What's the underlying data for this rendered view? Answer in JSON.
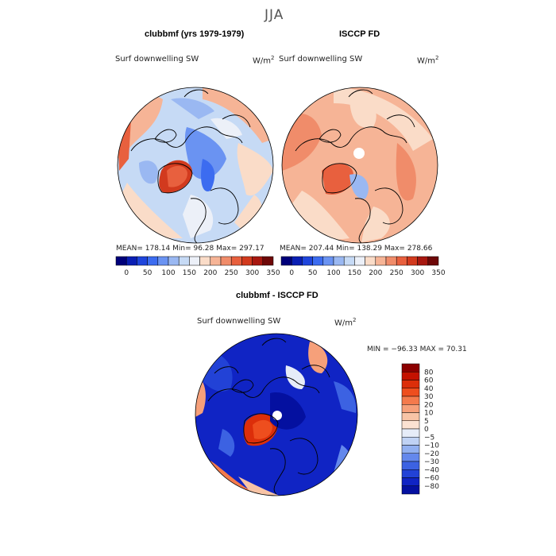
{
  "figure": {
    "title": "JJA"
  },
  "panels": [
    {
      "name": "model",
      "title": "clubbmf (yrs 1979-1979)",
      "variable": "Surf downwelling SW",
      "units": "W/m",
      "units_exp": "2",
      "stats": {
        "mean": "178.14",
        "min": "96.28",
        "max": "297.17"
      },
      "stats_text": "MEAN= 178.14   Min=   96.28   Max=  297.17"
    },
    {
      "name": "obs",
      "title": "ISCCP FD",
      "variable": "Surf downwelling SW",
      "units": "W/m",
      "units_exp": "2",
      "stats": {
        "mean": "207.44",
        "min": "138.29",
        "max": "278.66"
      },
      "stats_text": "MEAN= 207.44   Min=  138.29   Max=  278.66"
    },
    {
      "name": "diff",
      "title": "clubbmf - ISCCP FD",
      "variable": "Surf downwelling SW",
      "units": "W/m",
      "units_exp": "2",
      "stats_text": "MIN = −96.33 MAX =  70.31"
    }
  ],
  "abs_colorbar": {
    "colors": [
      "#00007a",
      "#0a1fb4",
      "#1f45dc",
      "#3c6cf0",
      "#6a93f2",
      "#9ab8f2",
      "#c6daf5",
      "#ecf0f8",
      "#fadcc8",
      "#f6b496",
      "#f08c6a",
      "#e8603e",
      "#d23a1e",
      "#a81810",
      "#6e0808"
    ],
    "tick_labels": [
      "0",
      "50",
      "100",
      "150",
      "200",
      "250",
      "300",
      "350"
    ]
  },
  "diff_colorbar": {
    "colors": [
      "#8c0000",
      "#c41200",
      "#dc2e0a",
      "#ee4e1e",
      "#f47a4c",
      "#f6a07a",
      "#f8c4a6",
      "#fbe2d2",
      "#e6ecf8",
      "#c0d2f4",
      "#92b0f0",
      "#6488ec",
      "#3c62e2",
      "#2242d6",
      "#1024c4",
      "#0410a0"
    ],
    "tick_labels": [
      "80",
      "60",
      "40",
      "30",
      "20",
      "10",
      "5",
      "0",
      "−5",
      "−10",
      "−20",
      "−30",
      "−40",
      "−60",
      "−80"
    ]
  },
  "colors": {
    "title_gray": "#555555",
    "land_outline": "#000000"
  }
}
